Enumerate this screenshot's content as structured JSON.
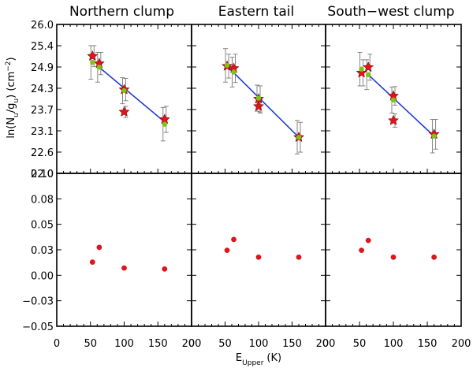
{
  "chart_data": {
    "type": "scatter",
    "x_label": "E",
    "x_label_sub": "Upper",
    "x_label_unit": "(K)",
    "x_range": [
      0,
      200
    ],
    "x_ticks": [
      "0",
      "50",
      "100",
      "150",
      "200"
    ],
    "top_ylabel": "ln(N",
    "top_ylabel_sub1": "u",
    "top_ylabel_mid": "/g",
    "top_ylabel_sub2": "u",
    "top_ylabel_tail": ") (cm",
    "top_ylabel_sup": "−2",
    "top_ylabel_close": ")",
    "top_ylim": [
      22.0,
      26.0
    ],
    "top_yticks": [
      "26.0",
      "25.4",
      "24.9",
      "24.3",
      "23.7",
      "23.1",
      "22.6",
      "22.0"
    ],
    "bottom_ylim": [
      -0.055,
      0.1
    ],
    "bottom_yticks": [
      "0.10",
      "0.08",
      "0.05",
      "0.03",
      "0.00",
      "−0.03",
      "−0.05"
    ],
    "colors": {
      "observed": "#e0141e",
      "model": "#7cc416",
      "fit": "#1f3fcf",
      "errorbar": "#7a7a7a"
    },
    "panels": [
      {
        "title": "Northern clump",
        "observed": [
          {
            "x": 53,
            "y": 25.15,
            "err": 0.28
          },
          {
            "x": 63,
            "y": 24.95,
            "err": 0.3
          },
          {
            "x": 100,
            "y": 24.25,
            "err": 0.3
          },
          {
            "x": 100,
            "y": 23.65,
            "err": 0.15
          },
          {
            "x": 160,
            "y": 23.45,
            "err": 0.35
          }
        ],
        "model": [
          {
            "x": 53,
            "y": 24.98,
            "err": 0.45
          },
          {
            "x": 63,
            "y": 24.85,
            "err": 0.4
          },
          {
            "x": 100,
            "y": 24.22,
            "err": 0.35
          },
          {
            "x": 160,
            "y": 23.32,
            "err": 0.45
          }
        ],
        "fit": {
          "x": [
            63,
            160
          ],
          "y": [
            24.85,
            23.38
          ]
        },
        "residual": [
          {
            "x": 53,
            "y": 0.01
          },
          {
            "x": 63,
            "y": 0.025
          },
          {
            "x": 100,
            "y": 0.004
          },
          {
            "x": 160,
            "y": 0.003
          }
        ]
      },
      {
        "title": "Eastern tail",
        "observed": [
          {
            "x": 53,
            "y": 24.88,
            "err": 0.32
          },
          {
            "x": 63,
            "y": 24.82,
            "err": 0.38
          },
          {
            "x": 100,
            "y": 24.0,
            "err": 0.35
          },
          {
            "x": 100,
            "y": 23.8,
            "err": 0.18
          },
          {
            "x": 160,
            "y": 22.97,
            "err": 0.4
          }
        ],
        "model": [
          {
            "x": 53,
            "y": 24.9,
            "err": 0.45
          },
          {
            "x": 63,
            "y": 24.72,
            "err": 0.4
          },
          {
            "x": 100,
            "y": 24.02,
            "err": 0.35
          },
          {
            "x": 160,
            "y": 22.97,
            "err": 0.45
          }
        ],
        "fit": {
          "x": [
            53,
            160
          ],
          "y": [
            24.88,
            22.97
          ]
        },
        "residual": [
          {
            "x": 53,
            "y": 0.022
          },
          {
            "x": 63,
            "y": 0.033
          },
          {
            "x": 100,
            "y": 0.015
          },
          {
            "x": 160,
            "y": 0.015
          }
        ]
      },
      {
        "title": "South−west clump",
        "observed": [
          {
            "x": 53,
            "y": 24.7,
            "err": 0.35
          },
          {
            "x": 63,
            "y": 24.85,
            "err": 0.35
          },
          {
            "x": 100,
            "y": 24.08,
            "err": 0.25
          },
          {
            "x": 100,
            "y": 23.42,
            "err": 0.18
          },
          {
            "x": 160,
            "y": 23.05,
            "err": 0.4
          }
        ],
        "model": [
          {
            "x": 53,
            "y": 24.8,
            "err": 0.45
          },
          {
            "x": 63,
            "y": 24.65,
            "err": 0.4
          },
          {
            "x": 100,
            "y": 23.97,
            "err": 0.35
          },
          {
            "x": 160,
            "y": 23.0,
            "err": 0.45
          }
        ],
        "fit": {
          "x": [
            63,
            160
          ],
          "y": [
            24.65,
            23.0
          ]
        },
        "residual": [
          {
            "x": 53,
            "y": 0.022
          },
          {
            "x": 63,
            "y": 0.032
          },
          {
            "x": 100,
            "y": 0.015
          },
          {
            "x": 160,
            "y": 0.015
          }
        ]
      }
    ]
  }
}
